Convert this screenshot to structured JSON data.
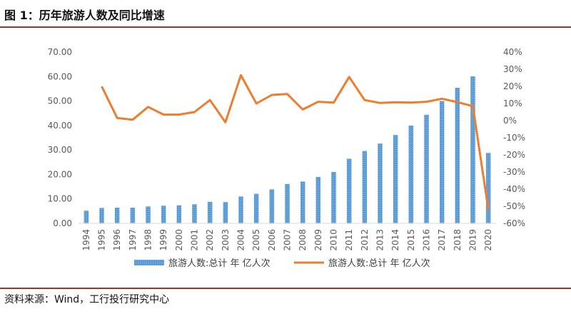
{
  "figure": {
    "title": "图 1：历年旅游人数及同比增速",
    "source": "资料来源：Wind，工行投行研究中心"
  },
  "chart_data": {
    "type": "bar+line",
    "categories": [
      "1994",
      "1995",
      "1996",
      "1997",
      "1998",
      "1999",
      "2000",
      "2001",
      "2002",
      "2003",
      "2004",
      "2005",
      "2006",
      "2007",
      "2008",
      "2009",
      "2010",
      "2011",
      "2012",
      "2013",
      "2014",
      "2015",
      "2016",
      "2017",
      "2018",
      "2019",
      "2020"
    ],
    "series": [
      {
        "name": "旅游人数:总计 年 亿人次",
        "kind": "bar",
        "axis": "left",
        "color": "#5b9bd5",
        "values": [
          5.2,
          6.3,
          6.4,
          6.4,
          6.9,
          7.2,
          7.4,
          7.8,
          8.8,
          8.7,
          11.0,
          12.1,
          13.9,
          16.1,
          17.1,
          19.0,
          21.0,
          26.4,
          29.6,
          32.6,
          36.1,
          40.0,
          44.4,
          50.0,
          55.4,
          60.1,
          28.8
        ]
      },
      {
        "name": "旅游人数:总计 年 亿人次",
        "kind": "line",
        "axis": "right",
        "color": "#ed7d31",
        "unit": "%",
        "values": [
          null,
          20.0,
          1.5,
          0.5,
          8.0,
          3.5,
          3.5,
          5.0,
          12.0,
          -1.0,
          26.5,
          10.0,
          15.0,
          15.5,
          6.5,
          11.0,
          10.5,
          25.5,
          12.0,
          10.3,
          10.7,
          10.5,
          11.0,
          12.8,
          10.8,
          8.4,
          -52.0
        ]
      }
    ],
    "y_left": {
      "min": 0,
      "max": 70,
      "step": 10,
      "tick_labels": [
        "0.00",
        "10.00",
        "20.00",
        "30.00",
        "40.00",
        "50.00",
        "60.00",
        "70.00"
      ]
    },
    "y_right": {
      "min": -60,
      "max": 40,
      "step": 10,
      "tick_labels": [
        "-60%",
        "-50%",
        "-40%",
        "-30%",
        "-20%",
        "-10%",
        "0%",
        "10%",
        "20%",
        "30%",
        "40%"
      ]
    },
    "legend_position": "bottom",
    "grid": false
  }
}
